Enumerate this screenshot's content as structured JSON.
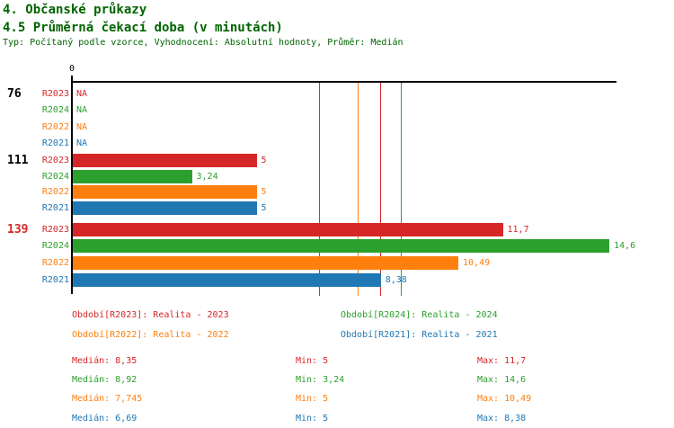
{
  "header": {
    "title": "4. Občanské průkazy",
    "subtitle": "4.5 Průměrná čekací doba (v minutách)",
    "meta": "Typ: Počítaný podle vzorce, Vyhodnocení: Absolutní hodnoty, Průměr: Medián"
  },
  "colors": {
    "R2023": "#d62728",
    "R2024": "#2ca02c",
    "R2022": "#ff7f0e",
    "R2021": "#1f77b4",
    "header_text": "#006400",
    "axis": "#000000",
    "group_label_default": "#000000",
    "group_label_highlight": "#d62728"
  },
  "chart_data": {
    "type": "bar",
    "orientation": "horizontal",
    "x_origin_label": "0",
    "xlim": [
      0,
      14.8
    ],
    "series_order": [
      "R2023",
      "R2024",
      "R2022",
      "R2021"
    ],
    "groups": [
      {
        "label": "76",
        "highlight": false,
        "bars": [
          {
            "series": "R2023",
            "value": null,
            "display": "NA"
          },
          {
            "series": "R2024",
            "value": null,
            "display": "NA"
          },
          {
            "series": "R2022",
            "value": null,
            "display": "NA"
          },
          {
            "series": "R2021",
            "value": null,
            "display": "NA"
          }
        ]
      },
      {
        "label": "111",
        "highlight": false,
        "bars": [
          {
            "series": "R2023",
            "value": 5,
            "display": "5"
          },
          {
            "series": "R2024",
            "value": 3.24,
            "display": "3,24"
          },
          {
            "series": "R2022",
            "value": 5,
            "display": "5"
          },
          {
            "series": "R2021",
            "value": 5,
            "display": "5"
          }
        ]
      },
      {
        "label": "139",
        "highlight": true,
        "bars": [
          {
            "series": "R2023",
            "value": 11.7,
            "display": "11,7"
          },
          {
            "series": "R2024",
            "value": 14.6,
            "display": "14,6"
          },
          {
            "series": "R2022",
            "value": 10.49,
            "display": "10,49"
          },
          {
            "series": "R2021",
            "value": 8.38,
            "display": "8,38"
          }
        ]
      }
    ],
    "median_lines": [
      {
        "series": "R2021",
        "value": 6.69
      },
      {
        "series": "R2022",
        "value": 7.745
      },
      {
        "series": "R2023",
        "value": 8.35
      },
      {
        "series": "R2024",
        "value": 8.92
      }
    ]
  },
  "legend": [
    {
      "series": "R2023",
      "label": "Období[R2023]: Realita - 2023"
    },
    {
      "series": "R2024",
      "label": "Období[R2024]: Realita - 2024"
    },
    {
      "series": "R2022",
      "label": "Období[R2022]: Realita - 2022"
    },
    {
      "series": "R2021",
      "label": "Období[R2021]: Realita - 2021"
    }
  ],
  "stats": {
    "columns": [
      "Medián",
      "Min",
      "Max"
    ],
    "rows": [
      {
        "series": "R2023",
        "median": "8,35",
        "min": "5",
        "max": "11,7"
      },
      {
        "series": "R2024",
        "median": "8,92",
        "min": "3,24",
        "max": "14,6"
      },
      {
        "series": "R2022",
        "median": "7,745",
        "min": "5",
        "max": "10,49"
      },
      {
        "series": "R2021",
        "median": "6,69",
        "min": "5",
        "max": "8,38"
      }
    ]
  }
}
